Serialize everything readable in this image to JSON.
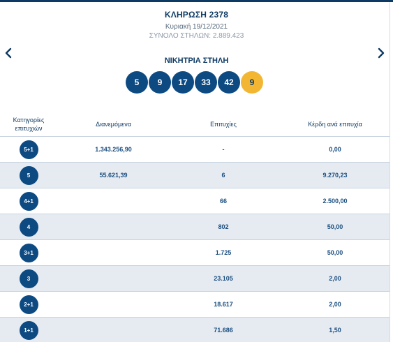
{
  "header": {
    "draw_title": "ΚΛΗΡΩΣΗ 2378",
    "draw_date": "Κυριακή 19/12/2021",
    "total_columns": "ΣΥΝΟΛΟ ΣΤΗΛΩΝ: 2.889.423"
  },
  "nav": {
    "prev_icon": "chevron-left-icon",
    "next_icon": "chevron-right-icon"
  },
  "winning": {
    "title": "ΝΙΚΗΤΡΙΑ ΣΤΗΛΗ",
    "numbers": [
      "5",
      "9",
      "17",
      "33",
      "42"
    ],
    "joker": "9"
  },
  "colors": {
    "primary": "#0d4a82",
    "joker": "#f2b632",
    "row_alt": "#e6ebf2"
  },
  "table": {
    "headers": {
      "category": "Κατηγορίες επιτυχιών",
      "distributed": "Διανεμόμενα",
      "winners": "Επιτυχίες",
      "prize": "Κέρδη ανά επιτυχία"
    },
    "rows": [
      {
        "category": "5+1",
        "distributed": "1.343.256,90",
        "winners": "-",
        "prize": "0,00"
      },
      {
        "category": "5",
        "distributed": "55.621,39",
        "winners": "6",
        "prize": "9.270,23"
      },
      {
        "category": "4+1",
        "distributed": "",
        "winners": "66",
        "prize": "2.500,00"
      },
      {
        "category": "4",
        "distributed": "",
        "winners": "802",
        "prize": "50,00"
      },
      {
        "category": "3+1",
        "distributed": "",
        "winners": "1.725",
        "prize": "50,00"
      },
      {
        "category": "3",
        "distributed": "",
        "winners": "23.105",
        "prize": "2,00"
      },
      {
        "category": "2+1",
        "distributed": "",
        "winners": "18.617",
        "prize": "2,00"
      },
      {
        "category": "1+1",
        "distributed": "",
        "winners": "71.686",
        "prize": "1,50"
      }
    ]
  }
}
